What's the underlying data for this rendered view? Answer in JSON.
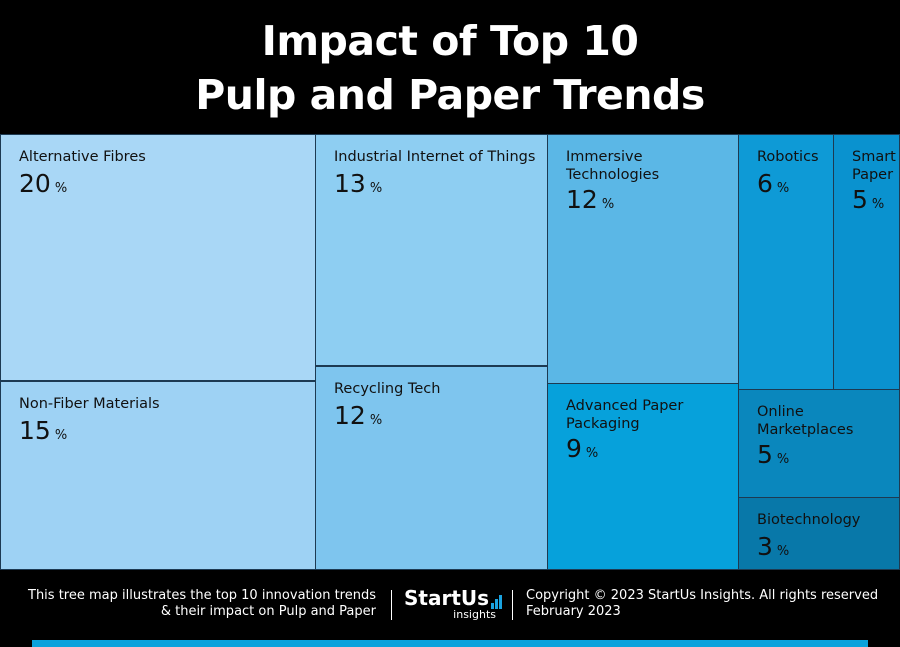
{
  "title_lines": [
    "Impact of Top 10",
    "Pulp and Paper Trends"
  ],
  "chart_data": {
    "type": "treemap",
    "title": "Impact of Top 10 Pulp and Paper Trends",
    "unit": "%",
    "items": [
      {
        "label": "Alternative Fibres",
        "value": 20,
        "color": "#a9d7f6"
      },
      {
        "label": "Non-Fiber Materials",
        "value": 15,
        "color": "#9ed2f4"
      },
      {
        "label": "Industrial Internet of Things",
        "value": 13,
        "color": "#8ecef2"
      },
      {
        "label": "Recycling Tech",
        "value": 12,
        "color": "#7ec5ee"
      },
      {
        "label": "Immersive\nTechnologies",
        "value": 12,
        "color": "#5bb7e6"
      },
      {
        "label": "Advanced Paper\nPackaging",
        "value": 9,
        "color": "#06a1db"
      },
      {
        "label": "Robotics",
        "value": 6,
        "color": "#0e9ad6"
      },
      {
        "label": "Smart\nPaper",
        "value": 5,
        "color": "#0a92cf"
      },
      {
        "label": "Online\nMarketplaces",
        "value": 5,
        "color": "#0a87bd"
      },
      {
        "label": "Biotechnology",
        "value": 3,
        "color": "#0878a9"
      }
    ]
  },
  "footer": {
    "left_line1": "This tree map illustrates the top 10 innovation trends",
    "left_line2": "& their impact on Pulp and Paper",
    "brand_name": "StartUs",
    "brand_sub": "insights",
    "right_line1": "Copyright © 2023 StartUs Insights. All rights reserved",
    "right_line2": "February 2023"
  },
  "colors": {
    "background": "#000000",
    "accent": "#0aa2dc"
  }
}
